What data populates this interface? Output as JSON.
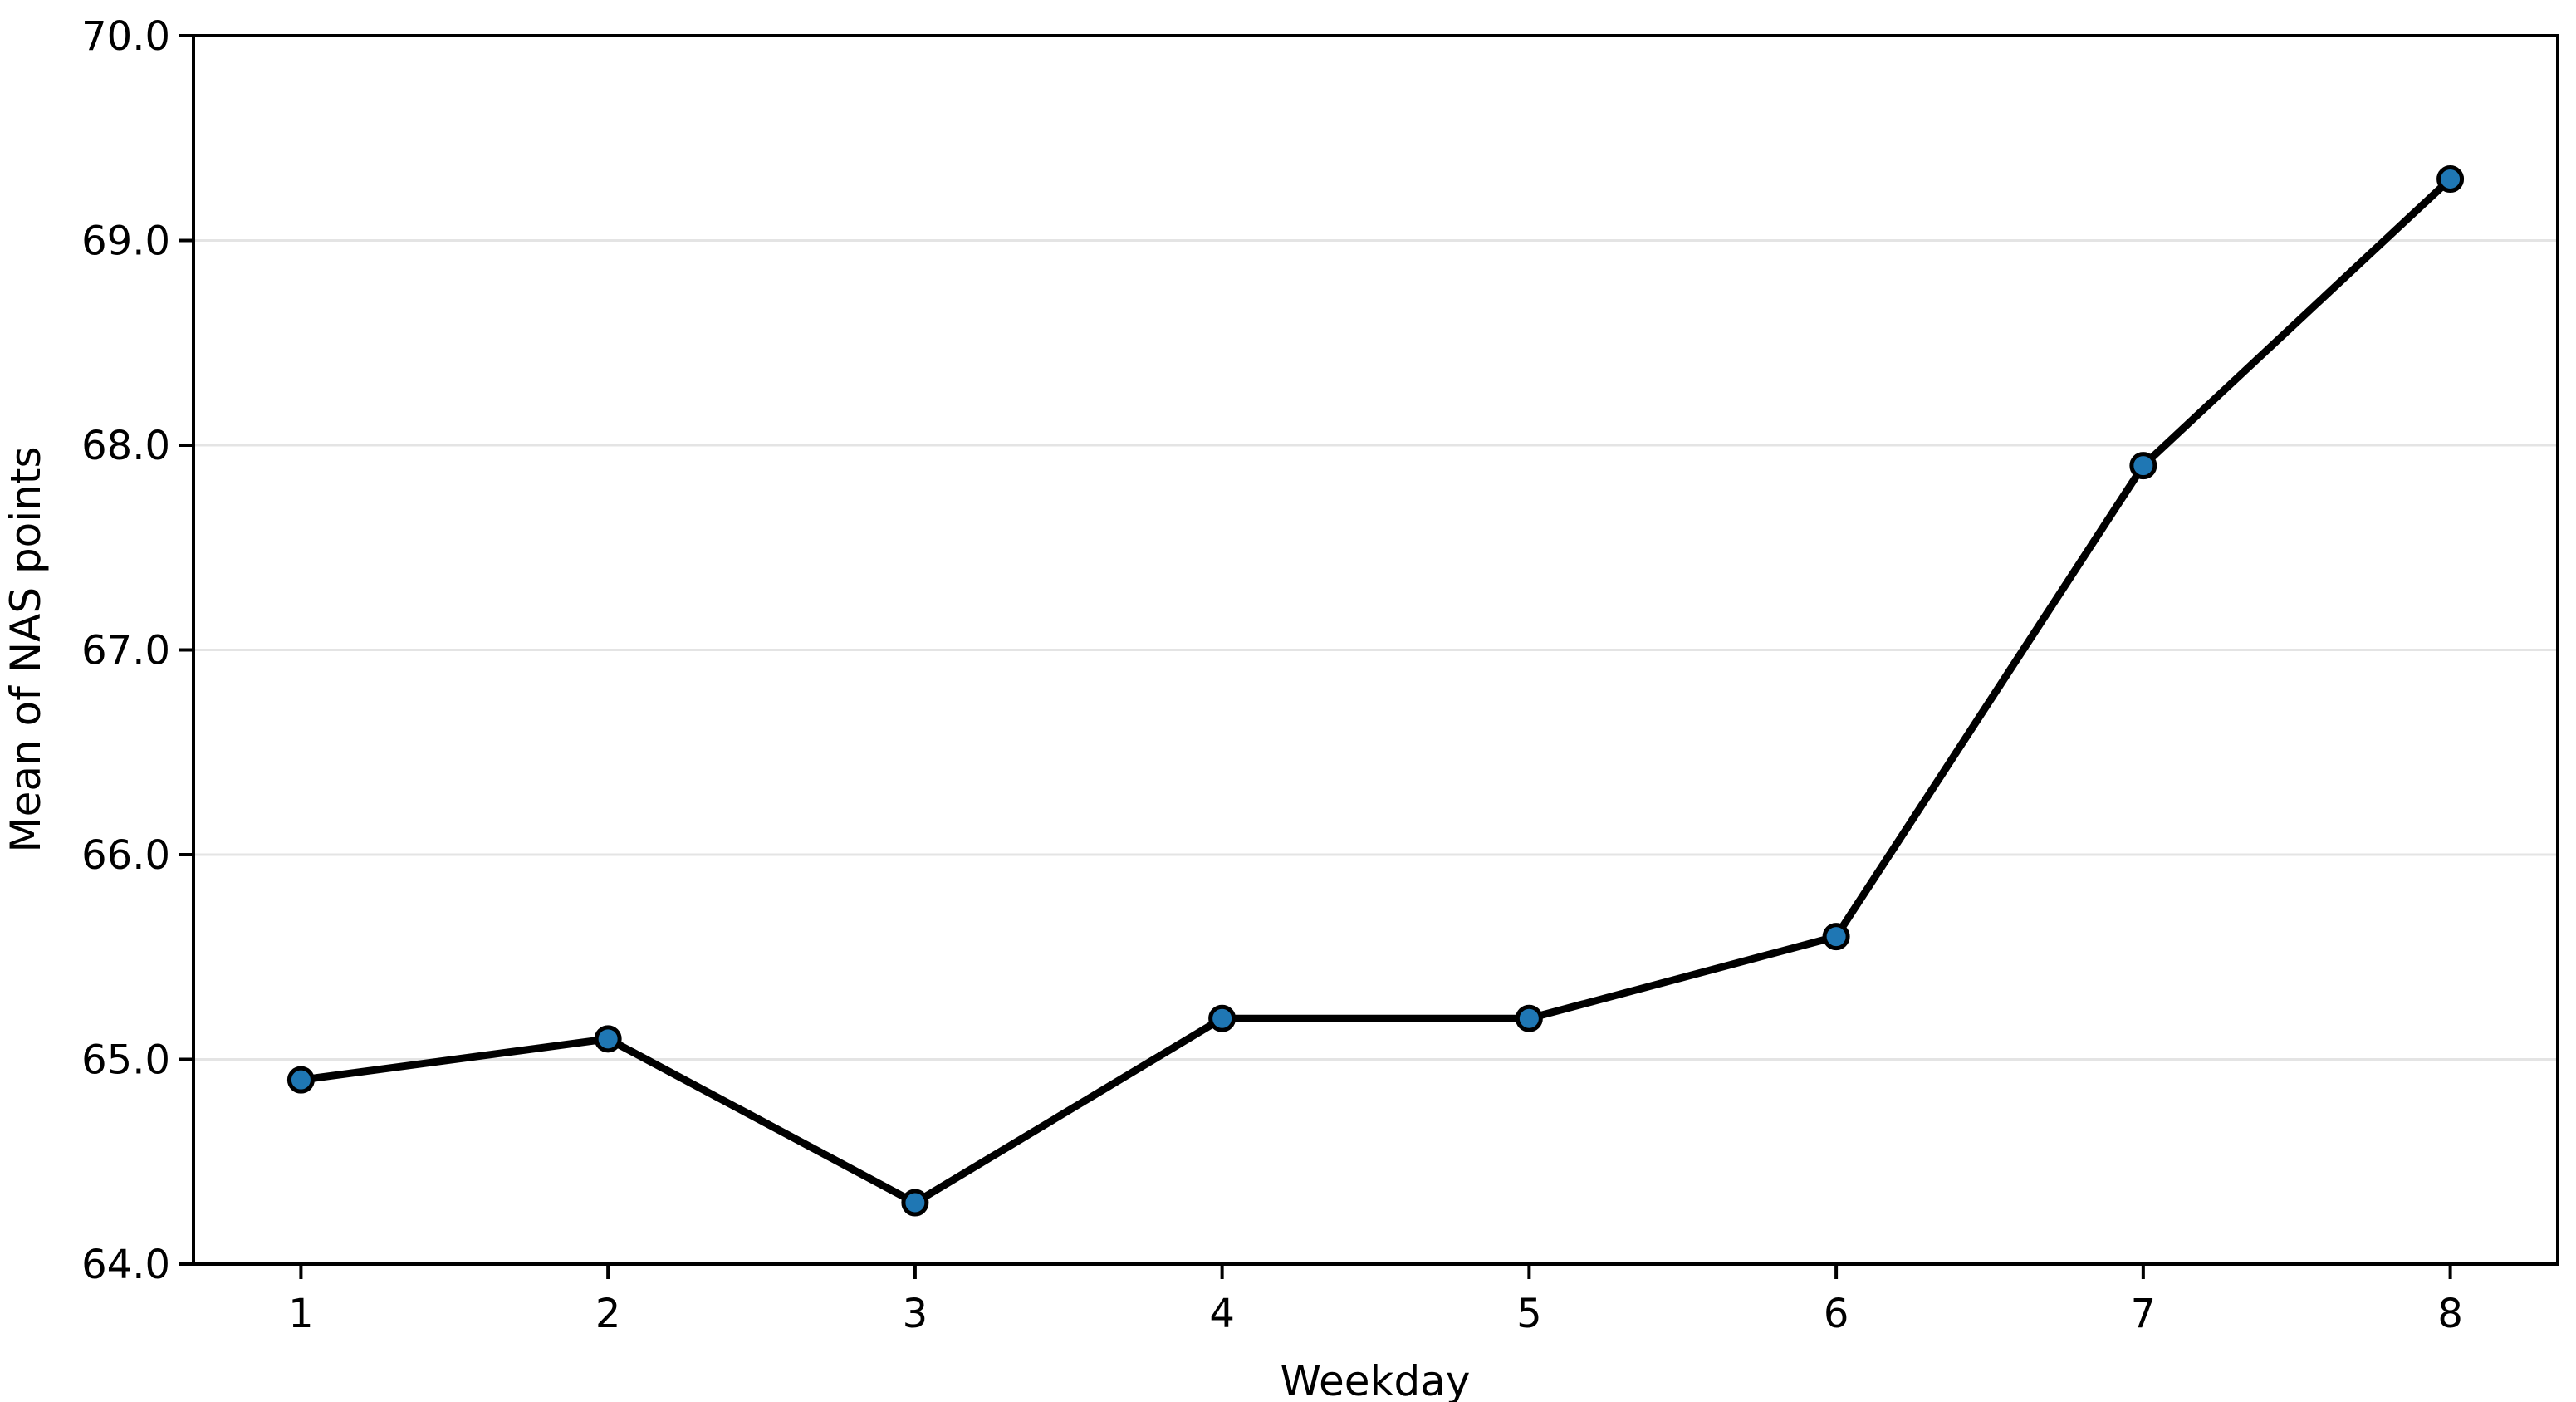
{
  "chart_data": {
    "type": "line",
    "title": "",
    "xlabel": "Weekday",
    "ylabel": "Mean of NAS points",
    "x": [
      1,
      2,
      3,
      4,
      5,
      6,
      7,
      8
    ],
    "series": [
      {
        "name": "Mean of NAS points",
        "values": [
          64.9,
          65.1,
          64.3,
          65.2,
          65.2,
          65.6,
          67.9,
          69.3
        ]
      }
    ],
    "xlim": [
      0.65,
      8.35
    ],
    "ylim": [
      64.0,
      70.0
    ],
    "xticks": [
      1,
      2,
      3,
      4,
      5,
      6,
      7,
      8
    ],
    "xtick_labels": [
      "1",
      "2",
      "3",
      "4",
      "5",
      "6",
      "7",
      "8"
    ],
    "yticks": [
      64.0,
      65.0,
      66.0,
      67.0,
      68.0,
      69.0,
      70.0
    ],
    "ytick_labels": [
      "64.0",
      "65.0",
      "66.0",
      "67.0",
      "68.0",
      "69.0",
      "70.0"
    ],
    "grid": "horizontal",
    "legend": "none",
    "colors": {
      "line": "#000000",
      "marker_fill": "#1f77b4",
      "marker_edge": "#000000",
      "grid": "#e4e4e4",
      "axis": "#000000",
      "text": "#000000",
      "background": "#ffffff"
    }
  }
}
